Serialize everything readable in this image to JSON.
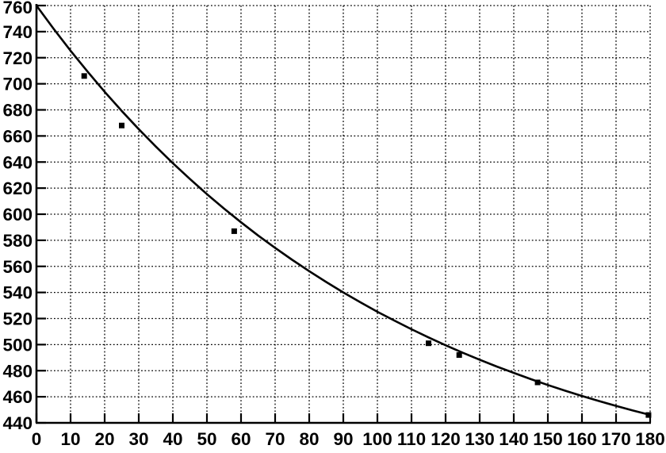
{
  "figure": {
    "background_color": "#ffffff",
    "axis_color": "#000000",
    "grid_color": "#000000",
    "curve_color": "#000000",
    "marker_color": "#000000",
    "text_color": "#000000"
  },
  "chart_data": {
    "type": "scatter",
    "title": "",
    "subtitle": "",
    "xlabel": "",
    "ylabel": "",
    "legend": "none",
    "grid": "dotted, at every tick, both directions",
    "xlim": [
      0,
      180
    ],
    "ylim": [
      440,
      760
    ],
    "x_ticks": [
      0,
      10,
      20,
      30,
      40,
      50,
      60,
      70,
      80,
      90,
      100,
      110,
      120,
      130,
      140,
      150,
      160,
      170,
      180
    ],
    "y_ticks": [
      440,
      460,
      480,
      500,
      520,
      540,
      560,
      580,
      600,
      620,
      640,
      660,
      680,
      700,
      720,
      740,
      760
    ],
    "x_tick_labels": [
      "0",
      "10",
      "20",
      "30",
      "40",
      "50",
      "60",
      "70",
      "80",
      "90",
      "100",
      "110",
      "120",
      "130",
      "140",
      "150",
      "160",
      "170",
      "180"
    ],
    "y_tick_labels": [
      "440",
      "460",
      "480",
      "500",
      "520",
      "540",
      "560",
      "580",
      "600",
      "620",
      "640",
      "660",
      "680",
      "700",
      "720",
      "740",
      "760"
    ],
    "series": [
      {
        "name": "data-points",
        "kind": "scatter",
        "marker": "filled-square",
        "marker_size_px": 7,
        "points": [
          [
            14,
            706
          ],
          [
            25,
            668
          ],
          [
            58,
            587
          ],
          [
            115,
            501
          ],
          [
            124,
            492
          ],
          [
            147,
            471
          ],
          [
            179.5,
            446
          ]
        ]
      },
      {
        "name": "fit-curve",
        "kind": "line",
        "model_description": "y = 376 + 384*exp(-0.00945*x)",
        "samples": [
          [
            0,
            760.0
          ],
          [
            5,
            742.3
          ],
          [
            10,
            725.4
          ],
          [
            15,
            709.3
          ],
          [
            20,
            693.9
          ],
          [
            25,
            679.2
          ],
          [
            30,
            665.2
          ],
          [
            35,
            651.9
          ],
          [
            40,
            639.1
          ],
          [
            45,
            627.0
          ],
          [
            50,
            615.4
          ],
          [
            55,
            604.3
          ],
          [
            60,
            593.8
          ],
          [
            65,
            583.7
          ],
          [
            70,
            574.2
          ],
          [
            75,
            565.0
          ],
          [
            80,
            556.3
          ],
          [
            85,
            548.0
          ],
          [
            90,
            540.0
          ],
          [
            95,
            532.5
          ],
          [
            100,
            525.2
          ],
          [
            105,
            518.4
          ],
          [
            110,
            511.8
          ],
          [
            115,
            505.5
          ],
          [
            120,
            499.5
          ],
          [
            125,
            493.8
          ],
          [
            130,
            488.4
          ],
          [
            135,
            483.2
          ],
          [
            140,
            478.3
          ],
          [
            145,
            473.5
          ],
          [
            150,
            469.0
          ],
          [
            155,
            464.7
          ],
          [
            160,
            460.6
          ],
          [
            165,
            456.7
          ],
          [
            170,
            453.0
          ],
          [
            175,
            449.4
          ],
          [
            180,
            446.1
          ]
        ]
      }
    ]
  }
}
